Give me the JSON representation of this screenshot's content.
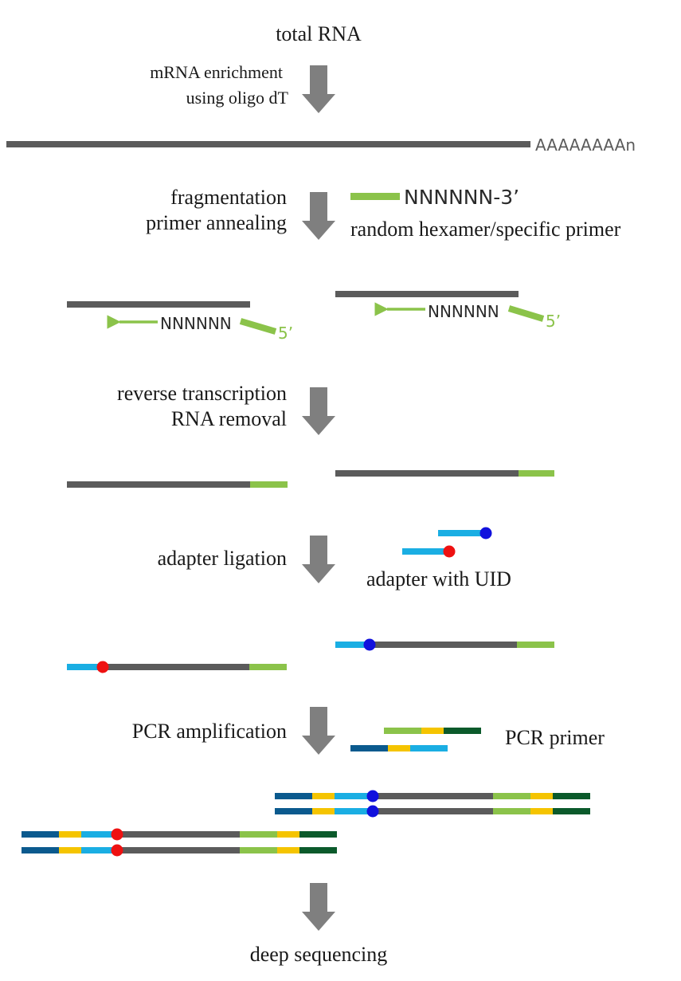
{
  "colors": {
    "rna": "#5b5b5b",
    "primer": "#8bc34a",
    "adapter": "#1aaee3",
    "dark_blue": "#0b5a8e",
    "yellow": "#f5c400",
    "dark_green": "#0b5a2b",
    "uid_red": "#ee1111",
    "uid_blue": "#1111dd",
    "arrow": "#7f7f7f",
    "text": "#1a1a1a"
  },
  "labels": {
    "total_rna": "total RNA",
    "enrichment_line1": "mRNA enrichment",
    "enrichment_line2": "using oligo dT",
    "polya": "AAAAAAAAn",
    "fragmentation": "fragmentation",
    "primer_annealing": "primer annealing",
    "primer_seq": "NNNNNN-3’",
    "primer_caption": "random hexamer/specific primer",
    "hexamer": "NNNNNN",
    "five_prime": "5’",
    "reverse_transcription": "reverse transcription",
    "rna_removal": "RNA removal",
    "adapter_ligation": "adapter ligation",
    "adapter_caption": "adapter with UID",
    "pcr_amplification": "PCR amplification",
    "pcr_primer": "PCR primer",
    "deep_sequencing": "deep sequencing"
  }
}
